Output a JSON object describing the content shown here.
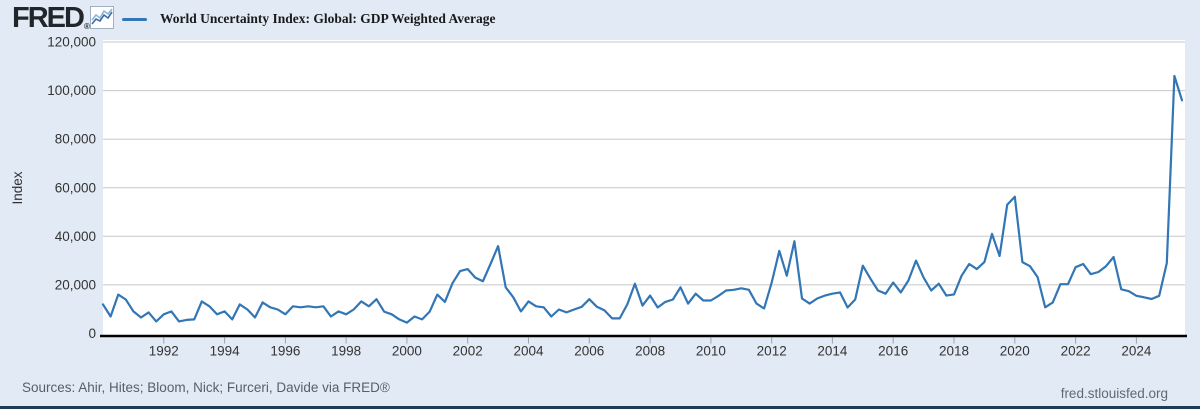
{
  "header": {
    "logo_text": "FRED",
    "logo_reg": "®"
  },
  "footer": {
    "sources": "Sources: Ahir, Hites; Bloom, Nick; Furceri, Davide via FRED®",
    "site": "fred.stlouisfed.org"
  },
  "colors": {
    "background": "#e2ebf5",
    "plot_background": "#ffffff",
    "grid": "#c8c8c8",
    "axis": "#000000",
    "series_blue": "#3276b5",
    "bottom_bar": "#1d3a57",
    "tick_text": "#333333"
  },
  "chart_data": {
    "type": "line",
    "title": "World Uncertainty Index: Global: GDP Weighted Average",
    "ylabel": "Index",
    "xlabel": "",
    "grid": true,
    "legend_position": "top-left",
    "xlim": [
      1990,
      2025.6
    ],
    "ylim": [
      0,
      120000
    ],
    "x_start": 1990.0,
    "x_step": 0.25,
    "x_unit": "quarterly",
    "x_ticks": [
      1992,
      1994,
      1996,
      1998,
      2000,
      2002,
      2004,
      2006,
      2008,
      2010,
      2012,
      2014,
      2016,
      2018,
      2020,
      2022,
      2024
    ],
    "y_ticks": [
      0,
      20000,
      40000,
      60000,
      80000,
      100000,
      120000
    ],
    "y_tick_labels": [
      "0",
      "20,000",
      "40,000",
      "60,000",
      "80,000",
      "100,000",
      "120,000"
    ],
    "series": [
      {
        "name": "World Uncertainty Index: Global: GDP Weighted Average",
        "color": "#3276b5",
        "values": [
          12000,
          7000,
          16000,
          14000,
          9100,
          6600,
          8700,
          5000,
          7900,
          9100,
          5000,
          5600,
          5800,
          13200,
          11200,
          7900,
          9100,
          5800,
          12000,
          9900,
          6600,
          12800,
          10800,
          9900,
          7900,
          11200,
          10800,
          11200,
          10800,
          11200,
          7000,
          9100,
          7900,
          9900,
          13200,
          11200,
          14100,
          9000,
          7900,
          5800,
          4500,
          7000,
          5800,
          9000,
          16000,
          13000,
          20700,
          25700,
          26500,
          23000,
          21500,
          28600,
          36000,
          19000,
          14900,
          9100,
          13200,
          11200,
          10800,
          7000,
          9900,
          8700,
          9900,
          11000,
          14100,
          11000,
          9500,
          6200,
          6200,
          12000,
          20500,
          11500,
          15600,
          10700,
          13000,
          14000,
          19000,
          12300,
          16400,
          13600,
          13600,
          15500,
          17700,
          18000,
          18600,
          18000,
          12300,
          10300,
          21000,
          34000,
          23800,
          38000,
          14400,
          12300,
          14400,
          15600,
          16400,
          16900,
          10700,
          14000,
          27900,
          22600,
          17700,
          16400,
          21000,
          16900,
          21800,
          30000,
          23000,
          17700,
          20500,
          15600,
          16100,
          23800,
          28600,
          26500,
          29400,
          41000,
          31900,
          53000,
          56300,
          29400,
          27700,
          23200,
          10800,
          12800,
          20300,
          20300,
          27300,
          28600,
          24400,
          25300,
          27700,
          31500,
          18200,
          17400,
          15500,
          14900,
          14200,
          15500,
          29000,
          106000,
          96000
        ]
      }
    ]
  }
}
